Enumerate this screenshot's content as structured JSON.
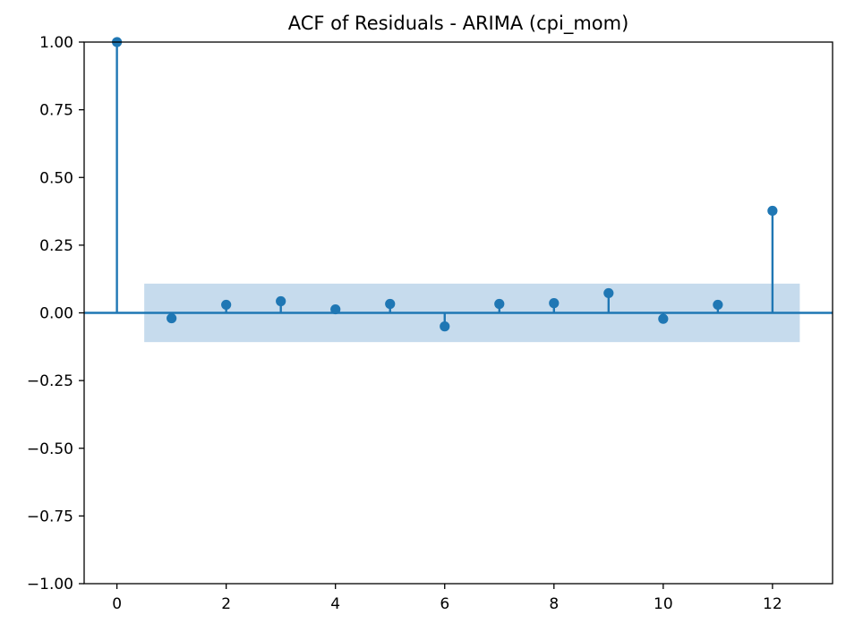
{
  "chart_data": {
    "type": "stem",
    "title": "ACF of Residuals - ARIMA (cpi_mom)",
    "xlabel": "",
    "ylabel": "",
    "xlim": [
      -0.6,
      13.1
    ],
    "ylim": [
      -1.0,
      1.0
    ],
    "x_ticks": [
      0,
      2,
      4,
      6,
      8,
      10,
      12
    ],
    "x_tick_labels": [
      "0",
      "2",
      "4",
      "6",
      "8",
      "10",
      "12"
    ],
    "y_ticks": [
      1.0,
      0.75,
      0.5,
      0.25,
      0.0,
      -0.25,
      -0.5,
      -0.75,
      -1.0
    ],
    "y_tick_labels": [
      "1.00",
      "0.75",
      "0.50",
      "0.25",
      "0.00",
      "−0.25",
      "−0.50",
      "−0.75",
      "−1.00"
    ],
    "lags": [
      0,
      1,
      2,
      3,
      4,
      5,
      6,
      7,
      8,
      9,
      10,
      11,
      12
    ],
    "values": [
      1.0,
      -0.02,
      0.03,
      0.043,
      0.013,
      0.033,
      -0.05,
      0.033,
      0.036,
      0.073,
      -0.022,
      0.03,
      0.377
    ],
    "confidence_band": {
      "x_range": [
        0.5,
        12.5
      ],
      "upper": 0.108,
      "lower": -0.108
    },
    "grid": false,
    "colors": {
      "series": "#1f77b4",
      "band": "#c6dbed",
      "axes": "#000000"
    }
  }
}
